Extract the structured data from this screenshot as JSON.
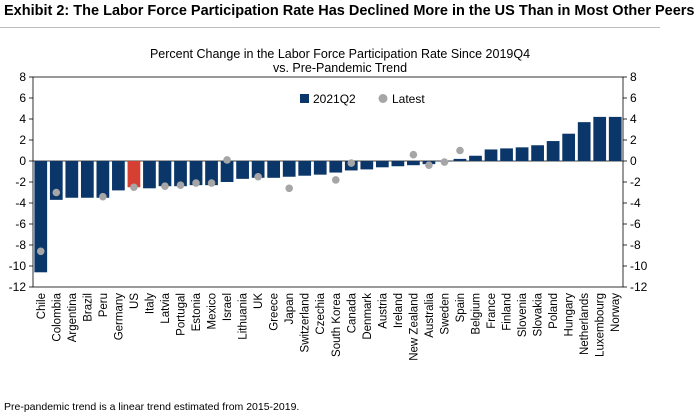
{
  "header": {
    "title": "Exhibit 2: The Labor Force Participation Rate Has Declined More in the US Than in Most Other Peers"
  },
  "footnote": "Pre-pandemic trend is a linear trend estimated from 2015-2019.",
  "colors": {
    "bar": "#0b3669",
    "highlight": "#d64032",
    "latest": "#a6a6a6"
  },
  "chart_data": {
    "type": "bar",
    "title": "Percent Change in the Labor Force Participation Rate Since 2019Q4",
    "subtitle": "vs. Pre-Pandemic Trend",
    "xlabel": "",
    "ylabel": "",
    "ylim": [
      -12,
      8
    ],
    "yticks": [
      8,
      6,
      4,
      2,
      0,
      -2,
      -4,
      -6,
      -8,
      -10,
      -12
    ],
    "legend_position": "top-center",
    "highlight_category": "US",
    "categories": [
      "Chile",
      "Colombia",
      "Argentina",
      "Brazil",
      "Peru",
      "Germany",
      "US",
      "Italy",
      "Latvia",
      "Portugal",
      "Estonia",
      "Mexico",
      "Israel",
      "Lithuania",
      "UK",
      "Greece",
      "Japan",
      "Switzerland",
      "Czechia",
      "South Korea",
      "Canada",
      "Denmark",
      "Austria",
      "Ireland",
      "New Zealand",
      "Australia",
      "Sweden",
      "Spain",
      "Belgium",
      "France",
      "Finland",
      "Slovenia",
      "Slovakia",
      "Poland",
      "Hungary",
      "Netherlands",
      "Luxembourg",
      "Norway"
    ],
    "series": [
      {
        "name": "2021Q2",
        "kind": "bar",
        "values": [
          -10.6,
          -3.7,
          -3.5,
          -3.5,
          -3.5,
          -2.8,
          -2.5,
          -2.6,
          -2.4,
          -2.4,
          -2.3,
          -2.3,
          -2.0,
          -1.7,
          -1.6,
          -1.6,
          -1.5,
          -1.4,
          -1.3,
          -1.1,
          -0.9,
          -0.8,
          -0.6,
          -0.5,
          -0.4,
          -0.3,
          0.0,
          0.2,
          0.5,
          1.1,
          1.2,
          1.3,
          1.5,
          1.9,
          2.6,
          3.7,
          4.2,
          4.2
        ]
      },
      {
        "name": "Latest",
        "kind": "scatter",
        "values": [
          -8.6,
          -3.0,
          null,
          null,
          -3.4,
          null,
          -2.5,
          null,
          -2.4,
          -2.3,
          -2.1,
          -2.1,
          0.1,
          null,
          -1.5,
          null,
          -2.6,
          null,
          null,
          -1.8,
          -0.2,
          null,
          null,
          null,
          0.6,
          -0.4,
          -0.1,
          1.0,
          null,
          null,
          null,
          null,
          null,
          null,
          null,
          null,
          null,
          null
        ]
      }
    ]
  }
}
